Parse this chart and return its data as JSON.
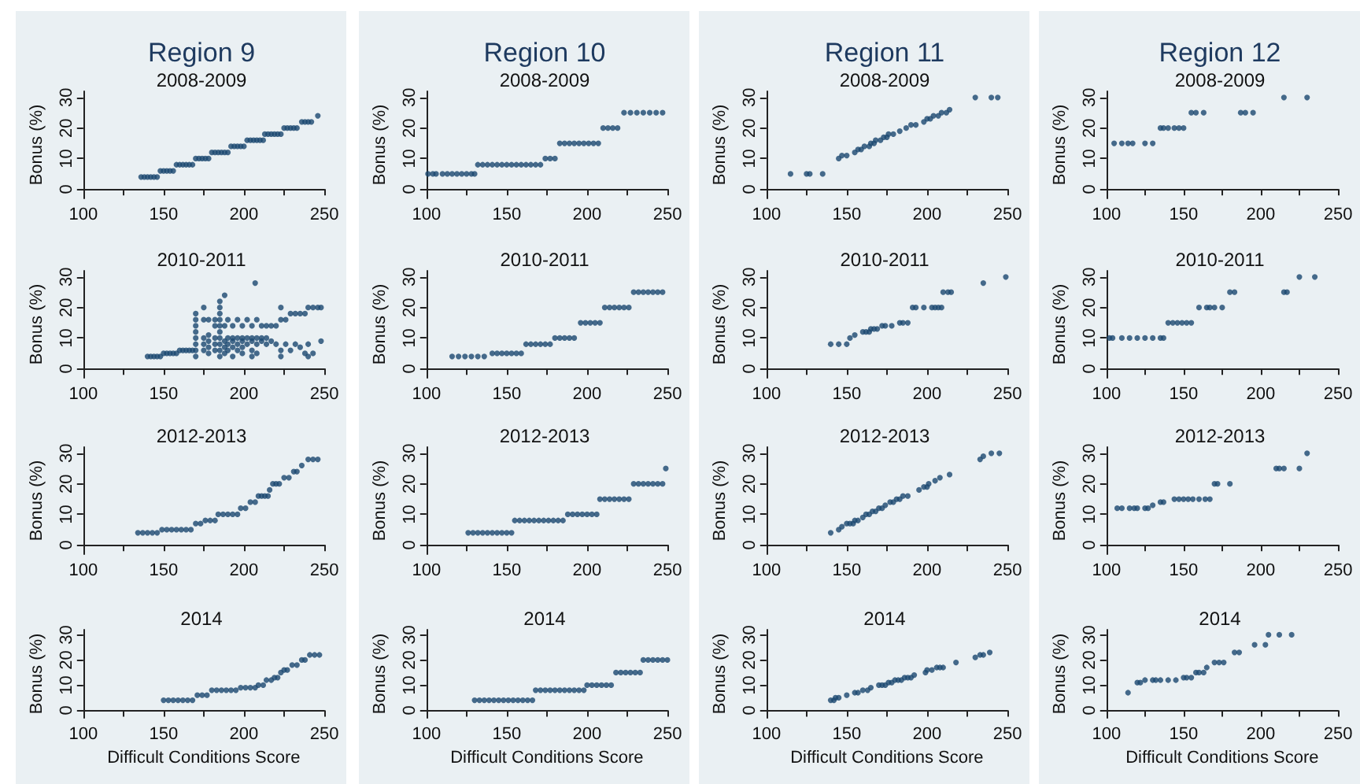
{
  "chart_data": [
    {
      "type": "scatter",
      "title": "Region 9",
      "subtitle": "2008-2009",
      "ylabel": "Bonus (%)",
      "color": "#1a476f",
      "marker": "circle",
      "xlim": [
        100,
        250
      ],
      "ylim": [
        -3,
        32
      ],
      "xticks": [
        100,
        {
          "value": 125,
          "label": null
        },
        150,
        {
          "value": 175,
          "label": null
        },
        200,
        {
          "value": 225,
          "label": null
        },
        250
      ],
      "yticks": [
        0,
        10,
        20,
        30
      ],
      "x": [
        136,
        138,
        140,
        142,
        144,
        146,
        148,
        150,
        152,
        154,
        156,
        158,
        160,
        162,
        164,
        166,
        168,
        170,
        172,
        174,
        176,
        178,
        180,
        182,
        184,
        186,
        188,
        190,
        192,
        194,
        196,
        198,
        200,
        202,
        204,
        206,
        208,
        210,
        212,
        213,
        215,
        217,
        219,
        221,
        223,
        225,
        227,
        229,
        231,
        233,
        236,
        238,
        240,
        242,
        246
      ],
      "values": [
        4,
        4,
        4,
        4,
        4,
        4,
        6,
        6,
        6,
        6,
        6,
        8,
        8,
        8,
        8,
        8,
        8,
        10,
        10,
        10,
        10,
        10,
        12,
        12,
        12,
        12,
        12,
        12,
        14,
        14,
        14,
        14,
        14,
        16,
        16,
        16,
        16,
        16,
        16,
        18,
        18,
        18,
        18,
        18,
        18,
        20,
        20,
        20,
        20,
        20,
        22,
        22,
        22,
        22,
        24
      ]
    },
    {
      "type": "scatter",
      "title": "Region 10",
      "subtitle": "2008-2009",
      "ylabel": "Bonus (%)",
      "color": "#1a476f",
      "marker": "circle",
      "xlim": [
        100,
        250
      ],
      "ylim": [
        -3,
        32
      ],
      "xticks": [
        100,
        {
          "value": 125,
          "label": null
        },
        150,
        {
          "value": 175,
          "label": null
        },
        200,
        {
          "value": 225,
          "label": null
        },
        250
      ],
      "yticks": [
        0,
        10,
        20,
        30
      ],
      "x": [
        101,
        104,
        106,
        110,
        113,
        116,
        119,
        122,
        125,
        128,
        130,
        132,
        135,
        138,
        141,
        144,
        147,
        150,
        153,
        156,
        159,
        162,
        165,
        168,
        171,
        174,
        177,
        180,
        183,
        186,
        189,
        192,
        195,
        198,
        201,
        204,
        207,
        210,
        213,
        216,
        219,
        223,
        227,
        231,
        235,
        239,
        243,
        247
      ],
      "values": [
        5,
        5,
        5,
        5,
        5,
        5,
        5,
        5,
        5,
        5,
        5,
        8,
        8,
        8,
        8,
        8,
        8,
        8,
        8,
        8,
        8,
        8,
        8,
        8,
        8,
        10,
        10,
        10,
        15,
        15,
        15,
        15,
        15,
        15,
        15,
        15,
        15,
        20,
        20,
        20,
        20,
        25,
        25,
        25,
        25,
        25,
        25,
        25
      ]
    },
    {
      "type": "scatter",
      "title": "Region 11",
      "subtitle": "2008-2009",
      "ylabel": "Bonus (%)",
      "color": "#1a476f",
      "marker": "circle",
      "xlim": [
        100,
        250
      ],
      "ylim": [
        -3,
        32
      ],
      "xticks": [
        100,
        {
          "value": 125,
          "label": null
        },
        150,
        {
          "value": 175,
          "label": null
        },
        200,
        {
          "value": 225,
          "label": null
        },
        250
      ],
      "yticks": [
        0,
        10,
        20,
        30
      ],
      "x": [
        115,
        125,
        127,
        135,
        145,
        147,
        150,
        155,
        157,
        159,
        161,
        164,
        165,
        167,
        168,
        171,
        173,
        175,
        176,
        179,
        183,
        187,
        190,
        193,
        198,
        200,
        202,
        204,
        207,
        209,
        212,
        214,
        230,
        240,
        244
      ],
      "values": [
        5,
        5,
        5,
        5,
        10,
        11,
        11,
        12,
        13,
        13,
        14,
        14,
        15,
        15,
        16,
        16,
        17,
        17,
        18,
        18,
        19,
        20,
        21,
        21,
        22,
        23,
        23,
        24,
        24,
        25,
        25,
        26,
        30,
        30,
        30
      ]
    },
    {
      "type": "scatter",
      "title": "Region 12",
      "subtitle": "2008-2009",
      "ylabel": "Bonus (%)",
      "color": "#1a476f",
      "marker": "circle",
      "xlim": [
        100,
        250
      ],
      "ylim": [
        -3,
        32
      ],
      "xticks": [
        100,
        {
          "value": 125,
          "label": null
        },
        150,
        {
          "value": 175,
          "label": null
        },
        200,
        {
          "value": 225,
          "label": null
        },
        250
      ],
      "yticks": [
        0,
        10,
        20,
        30
      ],
      "x": [
        105,
        110,
        114,
        117,
        125,
        130,
        135,
        137,
        140,
        144,
        147,
        150,
        155,
        158,
        163,
        187,
        190,
        195,
        215,
        230
      ],
      "values": [
        15,
        15,
        15,
        15,
        15,
        15,
        20,
        20,
        20,
        20,
        20,
        20,
        25,
        25,
        25,
        25,
        25,
        25,
        30,
        30
      ]
    },
    {
      "type": "scatter",
      "subtitle": "2010-2011",
      "ylabel": "Bonus (%)",
      "color": "#1a476f",
      "marker": "circle",
      "xlim": [
        100,
        250
      ],
      "ylim": [
        -3,
        32
      ],
      "xticks": [
        100,
        {
          "value": 125,
          "label": null
        },
        150,
        {
          "value": 175,
          "label": null
        },
        200,
        {
          "value": 225,
          "label": null
        },
        250
      ],
      "yticks": [
        0,
        10,
        20,
        30
      ],
      "x": [
        140,
        142,
        144,
        146,
        148,
        150,
        152,
        154,
        156,
        158,
        160,
        162,
        164,
        166,
        168,
        170,
        170,
        170,
        170,
        170,
        170,
        170,
        170,
        175,
        175,
        175,
        175,
        175,
        178,
        178,
        178,
        178,
        178,
        182,
        182,
        182,
        182,
        182,
        185,
        185,
        185,
        185,
        185,
        185,
        185,
        185,
        185,
        185,
        188,
        188,
        188,
        188,
        188,
        190,
        190,
        190,
        190,
        193,
        193,
        193,
        193,
        193,
        196,
        196,
        196,
        196,
        199,
        199,
        199,
        199,
        199,
        202,
        202,
        202,
        205,
        205,
        205,
        205,
        205,
        207,
        208,
        208,
        208,
        208,
        211,
        211,
        211,
        214,
        214,
        214,
        217,
        217,
        220,
        220,
        223,
        223,
        223,
        223,
        226,
        226,
        229,
        229,
        232,
        232,
        235,
        235,
        238,
        238,
        240,
        240,
        240,
        243,
        243,
        246,
        248,
        248
      ],
      "values": [
        4,
        4,
        4,
        4,
        4,
        5,
        5,
        5,
        5,
        5,
        6,
        6,
        6,
        6,
        6,
        4,
        6,
        8,
        10,
        12,
        14,
        16,
        18,
        6,
        8,
        10,
        16,
        20,
        5,
        7,
        9,
        11,
        16,
        6,
        8,
        10,
        14,
        16,
        4,
        6,
        8,
        10,
        12,
        14,
        16,
        18,
        20,
        22,
        5,
        7,
        9,
        14,
        24,
        6,
        8,
        10,
        16,
        4,
        7,
        9,
        10,
        14,
        6,
        8,
        10,
        16,
        5,
        7,
        9,
        10,
        14,
        8,
        10,
        16,
        4,
        6,
        9,
        10,
        14,
        28,
        5,
        8,
        10,
        16,
        9,
        10,
        14,
        8,
        10,
        14,
        14,
        9,
        14,
        8,
        16,
        20,
        6,
        4,
        16,
        8,
        18,
        6,
        18,
        8,
        18,
        7,
        18,
        5,
        20,
        8,
        4,
        20,
        5,
        20,
        20,
        9
      ]
    },
    {
      "type": "scatter",
      "subtitle": "2010-2011",
      "ylabel": "Bonus (%)",
      "color": "#1a476f",
      "marker": "circle",
      "xlim": [
        100,
        250
      ],
      "ylim": [
        -3,
        32
      ],
      "xticks": [
        100,
        {
          "value": 125,
          "label": null
        },
        150,
        {
          "value": 175,
          "label": null
        },
        200,
        {
          "value": 225,
          "label": null
        },
        250
      ],
      "yticks": [
        0,
        10,
        20,
        30
      ],
      "x": [
        116,
        120,
        124,
        128,
        132,
        136,
        141,
        144,
        147,
        150,
        153,
        156,
        159,
        162,
        165,
        168,
        171,
        174,
        177,
        180,
        183,
        186,
        189,
        192,
        196,
        199,
        202,
        205,
        208,
        211,
        214,
        217,
        220,
        223,
        226,
        229,
        232,
        235,
        238,
        241,
        244,
        247
      ],
      "values": [
        4,
        4,
        4,
        4,
        4,
        4,
        5,
        5,
        5,
        5,
        5,
        5,
        5,
        8,
        8,
        8,
        8,
        8,
        8,
        10,
        10,
        10,
        10,
        10,
        15,
        15,
        15,
        15,
        15,
        20,
        20,
        20,
        20,
        20,
        20,
        25,
        25,
        25,
        25,
        25,
        25,
        25
      ]
    },
    {
      "type": "scatter",
      "subtitle": "2010-2011",
      "ylabel": "Bonus (%)",
      "color": "#1a476f",
      "marker": "circle",
      "xlim": [
        100,
        250
      ],
      "ylim": [
        -3,
        32
      ],
      "xticks": [
        100,
        {
          "value": 125,
          "label": null
        },
        150,
        {
          "value": 175,
          "label": null
        },
        200,
        {
          "value": 225,
          "label": null
        },
        250
      ],
      "yticks": [
        0,
        10,
        20,
        30
      ],
      "x": [
        140,
        145,
        150,
        152,
        155,
        160,
        162,
        164,
        165,
        167,
        169,
        172,
        174,
        178,
        183,
        185,
        188,
        191,
        193,
        198,
        203,
        205,
        207,
        209,
        210,
        213,
        215,
        235,
        249
      ],
      "values": [
        8,
        8,
        8,
        10,
        11,
        12,
        12,
        12,
        13,
        13,
        13,
        14,
        14,
        14,
        15,
        15,
        15,
        20,
        20,
        20,
        20,
        20,
        20,
        20,
        25,
        25,
        25,
        28,
        30
      ]
    },
    {
      "type": "scatter",
      "subtitle": "2010-2011",
      "ylabel": "Bonus (%)",
      "color": "#1a476f",
      "marker": "circle",
      "xlim": [
        100,
        250
      ],
      "ylim": [
        -3,
        32
      ],
      "xticks": [
        100,
        {
          "value": 125,
          "label": null
        },
        150,
        {
          "value": 175,
          "label": null
        },
        200,
        {
          "value": 225,
          "label": null
        },
        250
      ],
      "yticks": [
        0,
        10,
        20,
        30
      ],
      "x": [
        102,
        104,
        110,
        115,
        120,
        125,
        130,
        135,
        137,
        140,
        143,
        146,
        149,
        152,
        155,
        160,
        165,
        167,
        170,
        175,
        180,
        183,
        215,
        217,
        225,
        235
      ],
      "values": [
        10,
        10,
        10,
        10,
        10,
        10,
        10,
        10,
        10,
        15,
        15,
        15,
        15,
        15,
        15,
        20,
        20,
        20,
        20,
        20,
        25,
        25,
        25,
        25,
        30,
        30
      ]
    },
    {
      "type": "scatter",
      "subtitle": "2012-2013",
      "ylabel": "Bonus (%)",
      "color": "#1a476f",
      "marker": "circle",
      "xlim": [
        100,
        250
      ],
      "ylim": [
        -3,
        32
      ],
      "xticks": [
        100,
        {
          "value": 125,
          "label": null
        },
        150,
        {
          "value": 175,
          "label": null
        },
        200,
        {
          "value": 225,
          "label": null
        },
        250
      ],
      "yticks": [
        0,
        10,
        20,
        30
      ],
      "x": [
        134,
        137,
        140,
        143,
        146,
        149,
        152,
        155,
        158,
        161,
        164,
        167,
        170,
        173,
        176,
        179,
        182,
        184,
        187,
        190,
        193,
        196,
        198,
        201,
        204,
        207,
        209,
        211,
        213,
        215,
        216,
        218,
        220,
        222,
        225,
        228,
        231,
        233,
        236,
        240,
        243,
        246
      ],
      "values": [
        4,
        4,
        4,
        4,
        4,
        5,
        5,
        5,
        5,
        5,
        5,
        5,
        7,
        7,
        8,
        8,
        8,
        10,
        10,
        10,
        10,
        10,
        12,
        12,
        14,
        14,
        16,
        16,
        16,
        16,
        18,
        20,
        20,
        20,
        22,
        22,
        24,
        24,
        26,
        28,
        28,
        28
      ]
    },
    {
      "type": "scatter",
      "subtitle": "2012-2013",
      "ylabel": "Bonus (%)",
      "color": "#1a476f",
      "marker": "circle",
      "xlim": [
        100,
        250
      ],
      "ylim": [
        -3,
        32
      ],
      "xticks": [
        100,
        {
          "value": 125,
          "label": null
        },
        150,
        {
          "value": 175,
          "label": null
        },
        200,
        {
          "value": 225,
          "label": null
        },
        250
      ],
      "yticks": [
        0,
        10,
        20,
        30
      ],
      "x": [
        126,
        129,
        132,
        135,
        138,
        141,
        144,
        147,
        150,
        153,
        155,
        158,
        161,
        164,
        167,
        170,
        173,
        176,
        179,
        182,
        185,
        188,
        191,
        194,
        197,
        200,
        203,
        206,
        208,
        211,
        214,
        217,
        220,
        223,
        226,
        229,
        232,
        235,
        238,
        241,
        244,
        247,
        249
      ],
      "values": [
        4,
        4,
        4,
        4,
        4,
        4,
        4,
        4,
        4,
        4,
        8,
        8,
        8,
        8,
        8,
        8,
        8,
        8,
        8,
        8,
        8,
        10,
        10,
        10,
        10,
        10,
        10,
        10,
        15,
        15,
        15,
        15,
        15,
        15,
        15,
        20,
        20,
        20,
        20,
        20,
        20,
        20,
        25
      ]
    },
    {
      "type": "scatter",
      "subtitle": "2012-2013",
      "ylabel": "Bonus (%)",
      "color": "#1a476f",
      "marker": "circle",
      "xlim": [
        100,
        250
      ],
      "ylim": [
        -3,
        32
      ],
      "xticks": [
        100,
        {
          "value": 125,
          "label": null
        },
        150,
        {
          "value": 175,
          "label": null
        },
        200,
        {
          "value": 225,
          "label": null
        },
        250
      ],
      "yticks": [
        0,
        10,
        20,
        30
      ],
      "x": [
        140,
        145,
        147,
        150,
        152,
        154,
        155,
        157,
        160,
        162,
        164,
        166,
        168,
        170,
        172,
        174,
        177,
        179,
        181,
        183,
        185,
        188,
        195,
        198,
        200,
        201,
        205,
        208,
        214,
        233,
        235,
        240,
        245
      ],
      "values": [
        4,
        5,
        6,
        7,
        7,
        7,
        8,
        8,
        9,
        10,
        10,
        11,
        11,
        12,
        12,
        13,
        14,
        14,
        15,
        15,
        16,
        16,
        18,
        19,
        19,
        20,
        21,
        22,
        23,
        28,
        29,
        30,
        30
      ]
    },
    {
      "type": "scatter",
      "subtitle": "2012-2013",
      "ylabel": "Bonus (%)",
      "color": "#1a476f",
      "marker": "circle",
      "xlim": [
        100,
        250
      ],
      "ylim": [
        -3,
        32
      ],
      "xticks": [
        100,
        {
          "value": 125,
          "label": null
        },
        150,
        {
          "value": 175,
          "label": null
        },
        200,
        {
          "value": 225,
          "label": null
        },
        250
      ],
      "yticks": [
        0,
        10,
        20,
        30
      ],
      "x": [
        107,
        110,
        115,
        118,
        120,
        125,
        127,
        130,
        135,
        137,
        144,
        147,
        150,
        153,
        156,
        160,
        164,
        167,
        170,
        172,
        180,
        210,
        212,
        215,
        225,
        230
      ],
      "values": [
        12,
        12,
        12,
        12,
        12,
        12,
        12,
        13,
        14,
        14,
        15,
        15,
        15,
        15,
        15,
        15,
        15,
        15,
        20,
        20,
        20,
        25,
        25,
        25,
        25,
        30
      ]
    },
    {
      "type": "scatter",
      "subtitle": "2014",
      "ylabel": "Bonus (%)",
      "xlabel": "Difficult Conditions Score",
      "color": "#1a476f",
      "marker": "circle",
      "xlim": [
        100,
        250
      ],
      "ylim": [
        -3,
        32
      ],
      "xticks": [
        100,
        {
          "value": 125,
          "label": null
        },
        150,
        {
          "value": 175,
          "label": null
        },
        200,
        {
          "value": 225,
          "label": null
        },
        250
      ],
      "yticks": [
        0,
        10,
        20,
        30
      ],
      "x": [
        150,
        153,
        156,
        159,
        162,
        165,
        168,
        171,
        174,
        177,
        180,
        183,
        186,
        189,
        192,
        195,
        198,
        201,
        204,
        207,
        209,
        212,
        214,
        217,
        219,
        221,
        223,
        225,
        227,
        230,
        233,
        236,
        238,
        241,
        244,
        247
      ],
      "values": [
        4,
        4,
        4,
        4,
        4,
        4,
        4,
        6,
        6,
        6,
        8,
        8,
        8,
        8,
        8,
        8,
        9,
        9,
        9,
        9,
        10,
        10,
        12,
        12,
        13,
        13,
        15,
        16,
        16,
        18,
        18,
        20,
        20,
        22,
        22,
        22
      ]
    },
    {
      "type": "scatter",
      "subtitle": "2014",
      "ylabel": "Bonus (%)",
      "xlabel": "Difficult Conditions Score",
      "color": "#1a476f",
      "marker": "circle",
      "xlim": [
        100,
        250
      ],
      "ylim": [
        -3,
        32
      ],
      "xticks": [
        100,
        {
          "value": 125,
          "label": null
        },
        150,
        {
          "value": 175,
          "label": null
        },
        200,
        {
          "value": 225,
          "label": null
        },
        250
      ],
      "yticks": [
        0,
        10,
        20,
        30
      ],
      "x": [
        130,
        133,
        136,
        139,
        142,
        145,
        148,
        151,
        154,
        157,
        160,
        163,
        166,
        168,
        171,
        174,
        177,
        180,
        183,
        186,
        189,
        192,
        195,
        198,
        200,
        203,
        206,
        209,
        212,
        215,
        218,
        221,
        224,
        227,
        230,
        233,
        235,
        238,
        241,
        244,
        247,
        250
      ],
      "values": [
        4,
        4,
        4,
        4,
        4,
        4,
        4,
        4,
        4,
        4,
        4,
        4,
        4,
        8,
        8,
        8,
        8,
        8,
        8,
        8,
        8,
        8,
        8,
        8,
        10,
        10,
        10,
        10,
        10,
        10,
        15,
        15,
        15,
        15,
        15,
        15,
        20,
        20,
        20,
        20,
        20,
        20
      ]
    },
    {
      "type": "scatter",
      "subtitle": "2014",
      "ylabel": "Bonus (%)",
      "xlabel": "Difficult Conditions Score",
      "color": "#1a476f",
      "marker": "circle",
      "xlim": [
        100,
        250
      ],
      "ylim": [
        -3,
        32
      ],
      "xticks": [
        100,
        {
          "value": 125,
          "label": null
        },
        150,
        {
          "value": 175,
          "label": null
        },
        200,
        {
          "value": 225,
          "label": null
        },
        250
      ],
      "yticks": [
        0,
        10,
        20,
        30
      ],
      "x": [
        140,
        142,
        143,
        145,
        150,
        155,
        157,
        160,
        163,
        165,
        170,
        172,
        174,
        176,
        178,
        180,
        182,
        184,
        186,
        188,
        190,
        192,
        199,
        200,
        203,
        206,
        208,
        210,
        218,
        230,
        233,
        235,
        239
      ],
      "values": [
        4,
        4,
        5,
        5,
        6,
        7,
        7,
        8,
        8,
        9,
        10,
        10,
        10,
        11,
        11,
        12,
        12,
        12,
        13,
        13,
        13,
        14,
        15,
        16,
        16,
        17,
        17,
        17,
        19,
        21,
        22,
        22,
        23
      ]
    },
    {
      "type": "scatter",
      "subtitle": "2014",
      "ylabel": "Bonus (%)",
      "xlabel": "Difficult Conditions Score",
      "color": "#1a476f",
      "marker": "circle",
      "xlim": [
        100,
        250
      ],
      "ylim": [
        -3,
        32
      ],
      "xticks": [
        100,
        {
          "value": 125,
          "label": null
        },
        150,
        {
          "value": 175,
          "label": null
        },
        200,
        {
          "value": 225,
          "label": null
        },
        250
      ],
      "yticks": [
        0,
        10,
        20,
        30
      ],
      "x": [
        114,
        120,
        122,
        125,
        130,
        132,
        135,
        140,
        145,
        150,
        152,
        155,
        158,
        160,
        163,
        165,
        170,
        173,
        176,
        183,
        186,
        196,
        203,
        205,
        212,
        220
      ],
      "values": [
        7,
        11,
        11,
        12,
        12,
        12,
        12,
        12,
        12,
        13,
        13,
        13,
        15,
        15,
        15,
        17,
        19,
        19,
        19,
        23,
        23,
        26,
        26,
        30,
        30,
        30
      ]
    }
  ]
}
